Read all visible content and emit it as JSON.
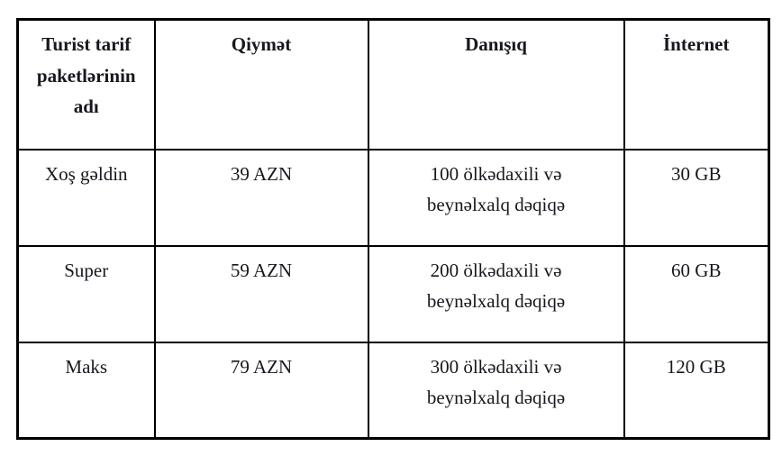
{
  "table": {
    "headers": {
      "name": "Turist tarif paketlərinin adı",
      "price": "Qiymət",
      "talk": "Danışıq",
      "internet": "İnternet"
    },
    "rows": [
      {
        "name": "Xoş gəldin",
        "price": "39 AZN",
        "talk_lines": [
          "100 ölkədaxili və",
          "beynəlxalq dəqiqə"
        ],
        "internet": "30 GB"
      },
      {
        "name": "Super",
        "price": "59 AZN",
        "talk_lines": [
          "200 ölkədaxili və",
          "beynəlxalq dəqiqə"
        ],
        "internet": "60 GB"
      },
      {
        "name": "Maks",
        "price": "79 AZN",
        "talk_lines": [
          "300 ölkədaxili və",
          "beynəlxalq dəqiqə"
        ],
        "internet": "120 GB"
      }
    ]
  },
  "colors": {
    "border": "#000000",
    "text": "#17171f",
    "background": "#ffffff"
  }
}
